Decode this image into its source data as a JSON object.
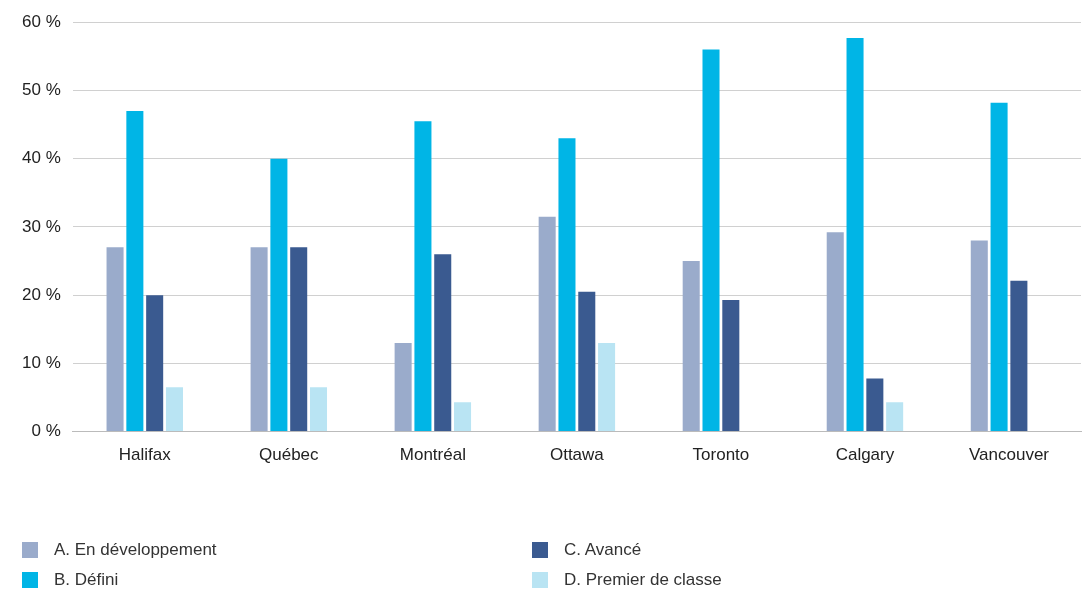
{
  "chart_data": {
    "type": "bar",
    "categories": [
      "Halifax",
      "Québec",
      "Montréal",
      "Ottawa",
      "Toronto",
      "Calgary",
      "Vancouver"
    ],
    "series": [
      {
        "name": "A. En développement",
        "color": "#9aabcb",
        "values": [
          27,
          27,
          13,
          31.5,
          25,
          29.2,
          28
        ]
      },
      {
        "name": "B. Défini",
        "color": "#00b5e6",
        "values": [
          47,
          40,
          45.5,
          43,
          56,
          57.7,
          48.2
        ]
      },
      {
        "name": "C. Avancé",
        "color": "#3a5a90",
        "values": [
          20,
          27,
          26,
          20.5,
          19.3,
          7.8,
          22.1
        ]
      },
      {
        "name": "D. Premier de classe",
        "color": "#b9e4f3",
        "values": [
          6.5,
          6.5,
          4.3,
          13,
          null,
          4.3,
          null
        ]
      }
    ],
    "ylim": [
      0,
      60
    ],
    "yticks": [
      {
        "value": 0,
        "label": "0 %"
      },
      {
        "value": 10,
        "label": "10 %"
      },
      {
        "value": 20,
        "label": "20 %"
      },
      {
        "value": 30,
        "label": "30 %"
      },
      {
        "value": 40,
        "label": "40 %"
      },
      {
        "value": 50,
        "label": "50 %"
      },
      {
        "value": 60,
        "label": "60 %"
      }
    ],
    "grid": "y",
    "legend": "bottom"
  }
}
